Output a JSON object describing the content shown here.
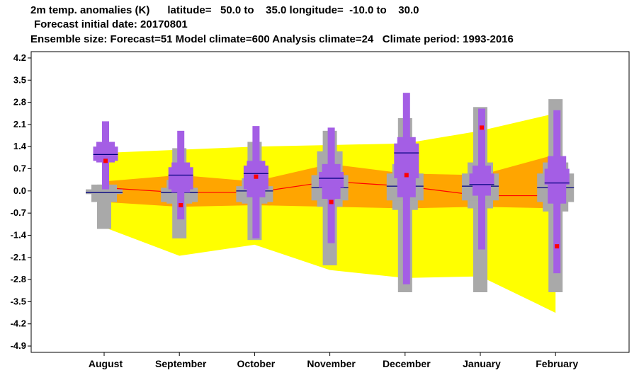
{
  "header": {
    "line1": "2m temp. anomalies (K)      latitude=   50.0 to    35.0 longitude=  -10.0 to    30.0",
    "line2": "Forecast initial date: 20170801",
    "line3": "Ensemble size: Forecast=51 Model climate=600 Analysis climate=24   Climate period: 1993-2016"
  },
  "colors": {
    "climate_outer": "#ffff00",
    "climate_inner": "#ffa500",
    "model_box": "#a9a9a9",
    "forecast_box": "#a45ee5",
    "median_line": "#000080",
    "analysis_marker": "#ff0000",
    "climate_median": "#ff0000"
  },
  "chart_data": {
    "type": "box",
    "title": "2m temp. anomalies (K)",
    "ylim": [
      -5.1,
      4.4
    ],
    "yticks": [
      4.2,
      3.5,
      2.8,
      2.1,
      1.4,
      0.7,
      0.0,
      -0.7,
      -1.4,
      -2.1,
      -2.8,
      -3.5,
      -4.2,
      -4.9
    ],
    "ytick_labels": [
      "4.2",
      "3.5",
      "2.8",
      "2.1",
      "1.4",
      "0.7",
      "0.0",
      "-0.7",
      "-1.4",
      "-2.1",
      "-2.8",
      "-3.5",
      "-4.2",
      "-4.9"
    ],
    "categories": [
      "August",
      "September",
      "October",
      "November",
      "December",
      "January",
      "February"
    ],
    "climate_band_outer": {
      "upper": [
        1.2,
        1.3,
        1.4,
        1.45,
        1.5,
        1.9,
        2.45
      ],
      "lower": [
        -1.15,
        -2.05,
        -1.7,
        -2.5,
        -2.75,
        -2.7,
        -3.85
      ]
    },
    "climate_band_inner": {
      "upper": [
        0.3,
        0.5,
        0.3,
        0.85,
        0.55,
        0.5,
        1.15
      ],
      "lower": [
        -0.35,
        -0.5,
        -0.45,
        -0.5,
        -0.55,
        -0.5,
        -0.55
      ]
    },
    "climate_median": [
      0.1,
      -0.05,
      -0.05,
      0.3,
      0.15,
      -0.15,
      -0.15
    ],
    "model_climate": [
      {
        "min": -1.2,
        "q10": -0.35,
        "q25": -0.1,
        "median": -0.05,
        "q75": 0.05,
        "q90": 0.2,
        "max": 0.2
      },
      {
        "min": -1.5,
        "q10": -0.4,
        "q25": -0.35,
        "median": -0.05,
        "q75": 0.1,
        "q90": 0.35,
        "max": 1.35
      },
      {
        "min": -1.55,
        "q10": -0.4,
        "q25": -0.35,
        "median": 0.0,
        "q75": 0.15,
        "q90": 0.4,
        "max": 1.55
      },
      {
        "min": -2.35,
        "q10": -0.5,
        "q25": -0.3,
        "median": 0.1,
        "q75": 0.5,
        "q90": 1.25,
        "max": 1.9
      },
      {
        "min": -3.2,
        "q10": -0.6,
        "q25": -0.3,
        "median": 0.15,
        "q75": 0.55,
        "q90": 0.85,
        "max": 2.3
      },
      {
        "min": -3.2,
        "q10": -0.55,
        "q25": -0.3,
        "median": 0.15,
        "q75": 0.55,
        "q90": 0.9,
        "max": 2.65
      },
      {
        "min": -3.2,
        "q10": -0.65,
        "q25": -0.35,
        "median": 0.1,
        "q75": 0.55,
        "q90": 0.9,
        "max": 2.9
      }
    ],
    "forecast": [
      {
        "min": 0.05,
        "q10": 0.9,
        "q25": 0.95,
        "median": 1.15,
        "q75": 1.4,
        "q90": 1.55,
        "max": 2.2
      },
      {
        "min": -0.9,
        "q10": -0.05,
        "q25": 0.05,
        "median": 0.5,
        "q75": 0.75,
        "q90": 0.9,
        "max": 1.9
      },
      {
        "min": -1.5,
        "q10": -0.2,
        "q25": 0.05,
        "median": 0.55,
        "q75": 0.8,
        "q90": 0.95,
        "max": 2.05
      },
      {
        "min": -1.65,
        "q10": -0.25,
        "q25": 0.1,
        "median": 0.4,
        "q75": 0.6,
        "q90": 0.85,
        "max": 2.0
      },
      {
        "min": -2.95,
        "q10": -0.2,
        "q25": 0.4,
        "median": 1.2,
        "q75": 1.5,
        "q90": 1.7,
        "max": 3.1
      },
      {
        "min": -1.85,
        "q10": -0.15,
        "q25": 0.2,
        "median": 0.2,
        "q75": 0.55,
        "q90": 0.8,
        "max": 2.6
      },
      {
        "min": -2.6,
        "q10": -0.4,
        "q25": 0.2,
        "median": 0.25,
        "q75": 0.7,
        "q90": 1.1,
        "max": 2.55
      }
    ],
    "analysis": [
      0.95,
      -0.45,
      0.45,
      -0.35,
      0.5,
      2.0,
      -1.75
    ],
    "grid": false
  }
}
